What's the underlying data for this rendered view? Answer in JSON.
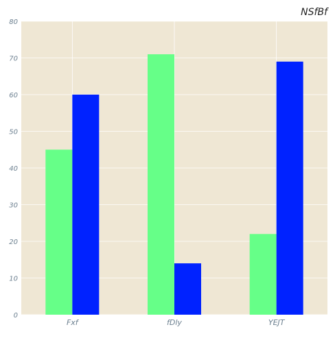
{
  "chart_data": {
    "type": "bar",
    "title": "NSfBf",
    "xlabel": "",
    "ylabel": "",
    "categories": [
      "Fxf",
      "fDly",
      "YEJT"
    ],
    "series": [
      {
        "values": [
          45,
          71,
          22
        ]
      },
      {
        "values": [
          60,
          14,
          69
        ]
      }
    ],
    "ylim": [
      0,
      80
    ],
    "yticks": [
      0,
      10,
      20,
      30,
      40,
      50,
      60,
      70,
      80
    ],
    "grid": true,
    "legend": "none"
  },
  "colors": {
    "plot_background": "#efe7d4",
    "grid": "#ffffff",
    "series": [
      "#66ff88",
      "#0022ff"
    ]
  }
}
